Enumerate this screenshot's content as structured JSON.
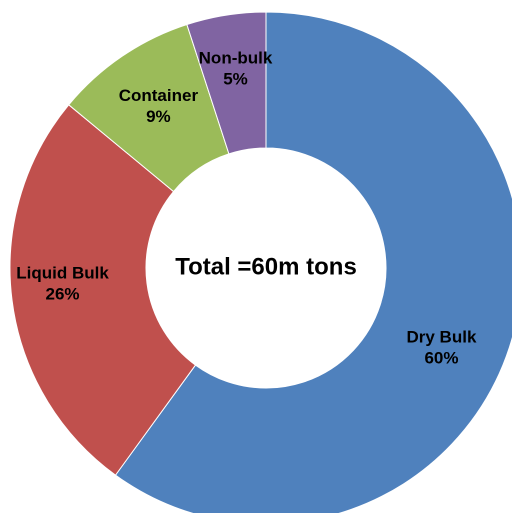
{
  "chart_data": {
    "type": "pie",
    "style": "donut",
    "center_text": "Total =60m tons",
    "slices": [
      {
        "label": "Dry Bulk",
        "value": 60,
        "value_label": "60%",
        "color": "#4F81BD"
      },
      {
        "label": "Liquid Bulk",
        "value": 26,
        "value_label": "26%",
        "color": "#C0504D"
      },
      {
        "label": "Container",
        "value": 9,
        "value_label": "9%",
        "color": "#9BBB59"
      },
      {
        "label": "Non-bulk",
        "value": 5,
        "value_label": "5%",
        "color": "#8064A2"
      }
    ],
    "start": "12 o'clock",
    "direction": "clockwise",
    "legend": "none"
  }
}
